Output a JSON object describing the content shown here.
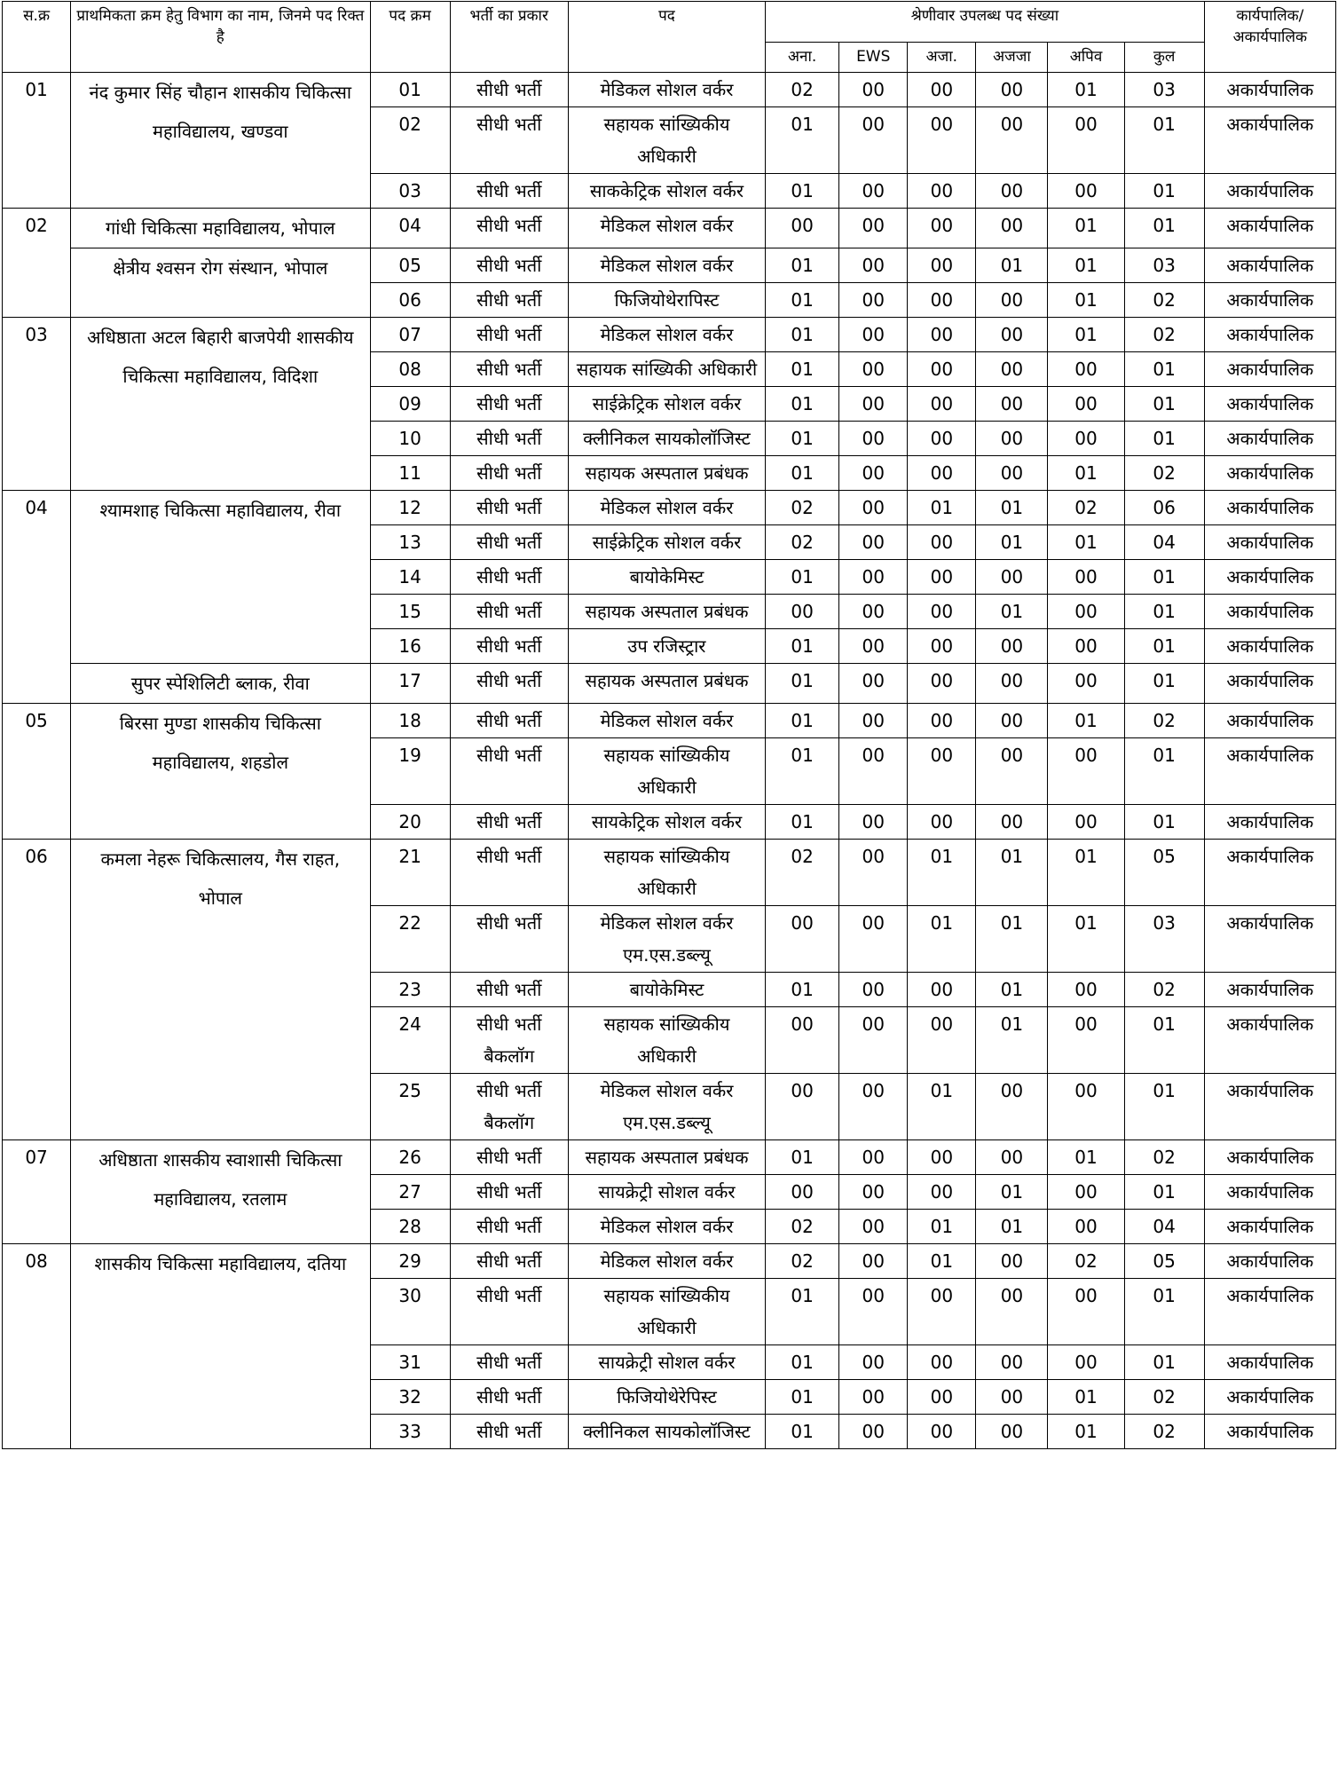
{
  "header": {
    "columns": [
      "स.क्र",
      "प्राथमिकता क्रम हेतु विभाग का नाम, जिनमे पद रिक्त है",
      "पद क्रम",
      "भर्ती का प्रकार",
      "पद",
      "श्रेणीवार उपलब्ध पद संख्या",
      "कार्यपालिक/ अकार्यपालिक"
    ],
    "subcolumns": [
      "अना.",
      "EWS",
      "अजा.",
      "अजजा",
      "अपिव",
      "कुल"
    ]
  },
  "groups": [
    {
      "sn": "01",
      "depts": [
        {
          "name": "नंद कुमार सिंह चौहान शासकीय चिकित्सा महाविद्यालय, खण्डवा",
          "rows": [
            [
              "01",
              "सीधी भर्ती",
              "मेडिकल सोशल वर्कर",
              "02",
              "00",
              "00",
              "00",
              "01",
              "03",
              "अकार्यपालिक"
            ],
            [
              "02",
              "सीधी भर्ती",
              "सहायक सांख्यिकीय अधिकारी",
              "01",
              "00",
              "00",
              "00",
              "00",
              "01",
              "अकार्यपालिक"
            ],
            [
              "03",
              "सीधी भर्ती",
              "साककेट्रिक सोशल वर्कर",
              "01",
              "00",
              "00",
              "00",
              "00",
              "01",
              "अकार्यपालिक"
            ]
          ]
        }
      ]
    },
    {
      "sn": "02",
      "depts": [
        {
          "name": "गांधी चिकित्सा महाविद्यालय, भोपाल",
          "rows": [
            [
              "04",
              "सीधी भर्ती",
              "मेडिकल सोशल वर्कर",
              "00",
              "00",
              "00",
              "00",
              "01",
              "01",
              "अकार्यपालिक"
            ]
          ]
        },
        {
          "name": "क्षेत्रीय श्वसन रोग संस्थान, भोपाल",
          "rows": [
            [
              "05",
              "सीधी भर्ती",
              "मेडिकल सोशल वर्कर",
              "01",
              "00",
              "00",
              "01",
              "01",
              "03",
              "अकार्यपालिक"
            ],
            [
              "06",
              "सीधी भर्ती",
              "फिजियोथेरापिस्ट",
              "01",
              "00",
              "00",
              "00",
              "01",
              "02",
              "अकार्यपालिक"
            ]
          ]
        }
      ]
    },
    {
      "sn": "03",
      "depts": [
        {
          "name": "अधिष्ठाता अटल बिहारी बाजपेयी शासकीय चिकित्सा महाविद्यालय, विदिशा",
          "rows": [
            [
              "07",
              "सीधी भर्ती",
              "मेडिकल सोशल वर्कर",
              "01",
              "00",
              "00",
              "00",
              "01",
              "02",
              "अकार्यपालिक"
            ],
            [
              "08",
              "सीधी भर्ती",
              "सहायक सांख्यिकी अधिकारी",
              "01",
              "00",
              "00",
              "00",
              "00",
              "01",
              "अकार्यपालिक"
            ],
            [
              "09",
              "सीधी भर्ती",
              "साईक्रेट्रिक सोशल वर्कर",
              "01",
              "00",
              "00",
              "00",
              "00",
              "01",
              "अकार्यपालिक"
            ],
            [
              "10",
              "सीधी भर्ती",
              "क्लीनिकल सायकोलॉजिस्ट",
              "01",
              "00",
              "00",
              "00",
              "00",
              "01",
              "अकार्यपालिक"
            ],
            [
              "11",
              "सीधी भर्ती",
              "सहायक अस्पताल प्रबंधक",
              "01",
              "00",
              "00",
              "00",
              "01",
              "02",
              "अकार्यपालिक"
            ]
          ]
        }
      ]
    },
    {
      "sn": "04",
      "depts": [
        {
          "name": "श्यामशाह चिकित्सा महाविद्यालय, रीवा",
          "rows": [
            [
              "12",
              "सीधी भर्ती",
              "मेडिकल सोशल वर्कर",
              "02",
              "00",
              "01",
              "01",
              "02",
              "06",
              "अकार्यपालिक"
            ],
            [
              "13",
              "सीधी भर्ती",
              "साईक्रेट्रिक सोशल वर्कर",
              "02",
              "00",
              "00",
              "01",
              "01",
              "04",
              "अकार्यपालिक"
            ],
            [
              "14",
              "सीधी भर्ती",
              "बायोकेमिस्ट",
              "01",
              "00",
              "00",
              "00",
              "00",
              "01",
              "अकार्यपालिक"
            ],
            [
              "15",
              "सीधी भर्ती",
              "सहायक अस्पताल प्रबंधक",
              "00",
              "00",
              "00",
              "01",
              "00",
              "01",
              "अकार्यपालिक"
            ],
            [
              "16",
              "सीधी भर्ती",
              "उप रजिस्ट्रार",
              "01",
              "00",
              "00",
              "00",
              "00",
              "01",
              "अकार्यपालिक"
            ]
          ]
        },
        {
          "name": "सुपर स्पेशिलिटी  ब्लाक, रीवा",
          "rows": [
            [
              "17",
              "सीधी भर्ती",
              "सहायक अस्पताल प्रबंधक",
              "01",
              "00",
              "00",
              "00",
              "00",
              "01",
              "अकार्यपालिक"
            ]
          ]
        }
      ]
    },
    {
      "sn": "05",
      "depts": [
        {
          "name": "बिरसा मुण्डा शासकीय चिकित्सा महाविद्यालय, शहडोल",
          "rows": [
            [
              "18",
              "सीधी भर्ती",
              "मेडिकल सोशल वर्कर",
              "01",
              "00",
              "00",
              "00",
              "01",
              "02",
              "अकार्यपालिक"
            ],
            [
              "19",
              "सीधी भर्ती",
              "सहायक सांख्यिकीय अधिकारी",
              "01",
              "00",
              "00",
              "00",
              "00",
              "01",
              "अकार्यपालिक"
            ],
            [
              "20",
              "सीधी भर्ती",
              "सायकेट्रिक सोशल वर्कर",
              "01",
              "00",
              "00",
              "00",
              "00",
              "01",
              "अकार्यपालिक"
            ]
          ]
        }
      ]
    },
    {
      "sn": "06",
      "depts": [
        {
          "name": "कमला नेहरू चिकित्सालय, गैस राहत, भोपाल",
          "rows": [
            [
              "21",
              "सीधी भर्ती",
              "सहायक सांख्यिकीय अधिकारी",
              "02",
              "00",
              "01",
              "01",
              "01",
              "05",
              "अकार्यपालिक"
            ],
            [
              "22",
              "सीधी भर्ती",
              "मेडिकल सोशल वर्कर एम.एस.डब्ल्यू",
              "00",
              "00",
              "01",
              "01",
              "01",
              "03",
              "अकार्यपालिक"
            ],
            [
              "23",
              "सीधी भर्ती",
              "बायोकेमिस्ट",
              "01",
              "00",
              "00",
              "01",
              "00",
              "02",
              "अकार्यपालिक"
            ],
            [
              "24",
              "सीधी भर्ती बैकलॉग",
              "सहायक सांख्यिकीय अधिकारी",
              "00",
              "00",
              "00",
              "01",
              "00",
              "01",
              "अकार्यपालिक"
            ],
            [
              "25",
              "सीधी भर्ती बैकलॉग",
              "मेडिकल सोशल वर्कर एम.एस.डब्ल्यू",
              "00",
              "00",
              "01",
              "00",
              "00",
              "01",
              "अकार्यपालिक"
            ]
          ]
        }
      ]
    },
    {
      "sn": "07",
      "depts": [
        {
          "name": "अधिष्ठाता शासकीय स्वाशासी चिकित्सा महाविद्यालय, रतलाम",
          "rows": [
            [
              "26",
              "सीधी भर्ती",
              "सहायक अस्पताल प्रबंधक",
              "01",
              "00",
              "00",
              "00",
              "01",
              "02",
              "अकार्यपालिक"
            ],
            [
              "27",
              "सीधी भर्ती",
              "सायक्रेट्री सोशल वर्कर",
              "00",
              "00",
              "00",
              "01",
              "00",
              "01",
              "अकार्यपालिक"
            ],
            [
              "28",
              "सीधी भर्ती",
              "मेडिकल सोशल वर्कर",
              "02",
              "00",
              "01",
              "01",
              "00",
              "04",
              "अकार्यपालिक"
            ]
          ]
        }
      ]
    },
    {
      "sn": "08",
      "depts": [
        {
          "name": "शासकीय चिकित्सा महाविद्यालय, दतिया",
          "rows": [
            [
              "29",
              "सीधी भर्ती",
              "मेडिकल सोशल वर्कर",
              "02",
              "00",
              "01",
              "00",
              "02",
              "05",
              "अकार्यपालिक"
            ],
            [
              "30",
              "सीधी भर्ती",
              "सहायक सांख्यिकीय अधिकारी",
              "01",
              "00",
              "00",
              "00",
              "00",
              "01",
              "अकार्यपालिक"
            ],
            [
              "31",
              "सीधी भर्ती",
              "सायक्रेट्री सोशल वर्कर",
              "01",
              "00",
              "00",
              "00",
              "00",
              "01",
              "अकार्यपालिक"
            ],
            [
              "32",
              "सीधी भर्ती",
              "फिजियोथेरेपिस्ट",
              "01",
              "00",
              "00",
              "00",
              "01",
              "02",
              "अकार्यपालिक"
            ],
            [
              "33",
              "सीधी भर्ती",
              "क्लीनिकल सायकोलॉजिस्ट",
              "01",
              "00",
              "00",
              "00",
              "01",
              "02",
              "अकार्यपालिक"
            ]
          ]
        }
      ]
    }
  ]
}
